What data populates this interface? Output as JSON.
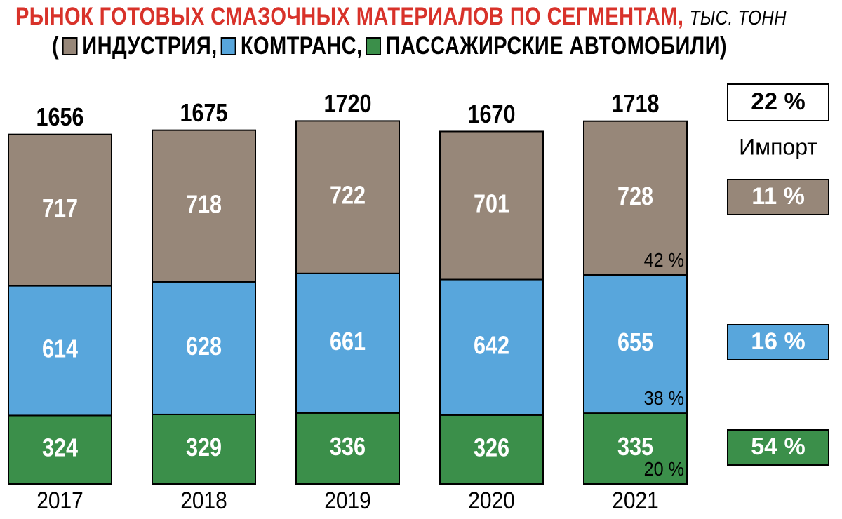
{
  "title": {
    "main": "РЫНОК ГОТОВЫХ СМАЗОЧНЫХ МАТЕРИАЛОВ ПО СЕГМЕНТАМ,",
    "unit": "ТЫС. ТОНН",
    "open_paren": "(",
    "close_paren": ")",
    "legend": [
      {
        "label": "ИНДУСТРИЯ,",
        "color": "#978779"
      },
      {
        "label": "КОМТРАНС,",
        "color": "#58a6dc"
      },
      {
        "label": "ПАССАЖИРСКИЕ АВТОМОБИЛИ",
        "color": "#3b8f4a"
      }
    ]
  },
  "chart_data": {
    "type": "bar",
    "stacked": true,
    "categories": [
      "2017",
      "2018",
      "2019",
      "2020",
      "2021"
    ],
    "totals": [
      1656,
      1675,
      1720,
      1670,
      1718
    ],
    "series": [
      {
        "name": "ИНДУСТРИЯ",
        "color": "#978779",
        "values": [
          717,
          718,
          722,
          701,
          728
        ]
      },
      {
        "name": "КОМТРАНС",
        "color": "#58a6dc",
        "values": [
          614,
          628,
          661,
          642,
          655
        ]
      },
      {
        "name": "ПАССАЖИРСКИЕ АВТОМОБИЛИ",
        "color": "#3b8f4a",
        "values": [
          324,
          329,
          336,
          326,
          335
        ]
      }
    ],
    "share_labels_2021": [
      "42 %",
      "38 %",
      "20 %"
    ],
    "import_panel": {
      "total": "22 %",
      "label": "Импорт",
      "industry": "11 %",
      "comtrans": "16 %",
      "passenger": "54 %"
    }
  }
}
